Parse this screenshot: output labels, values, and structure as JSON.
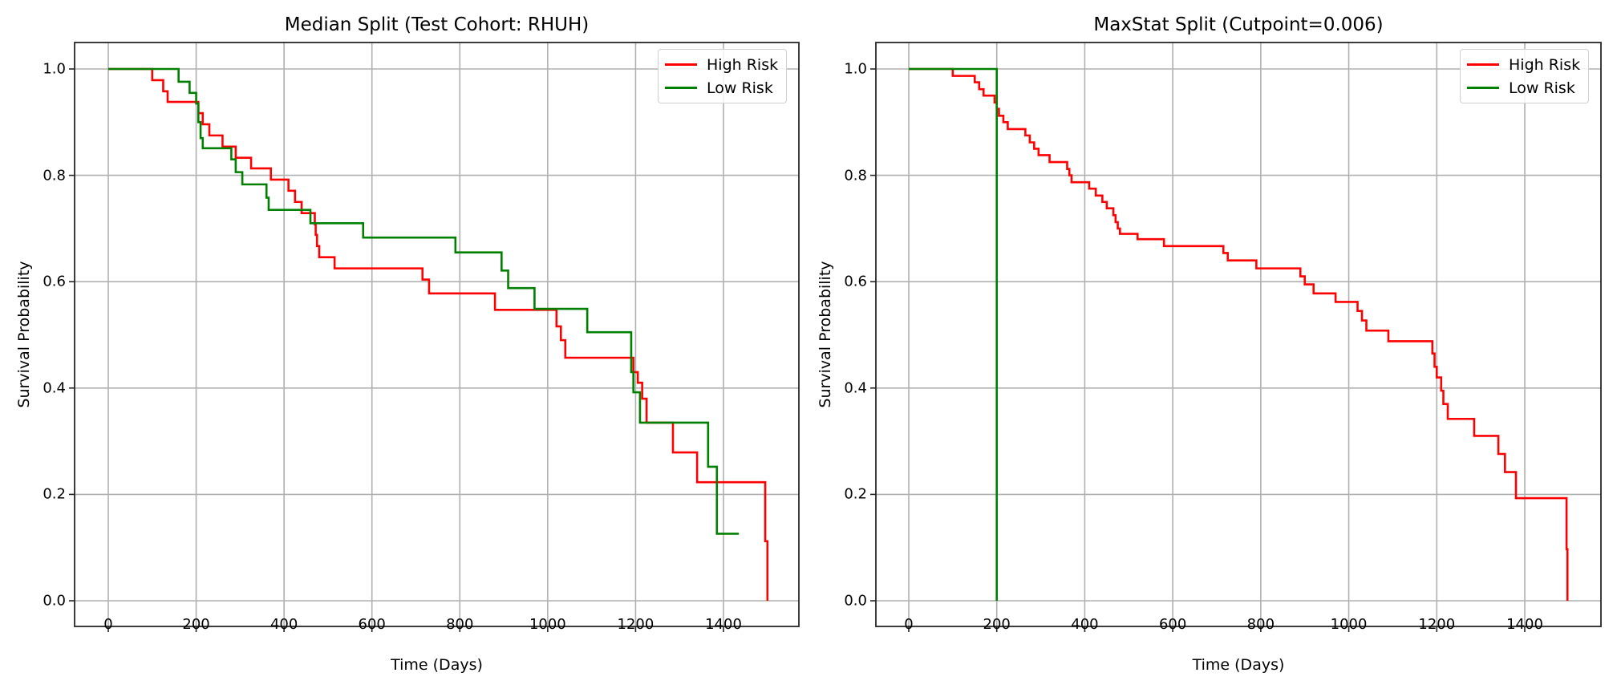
{
  "chart_data": [
    {
      "type": "line",
      "subtype": "kaplan-meier-step",
      "title": "Median Split (Test Cohort: RHUH)",
      "xlabel": "Time (Days)",
      "ylabel": "Survival Probability",
      "xlim": [
        -75,
        1575
      ],
      "ylim": [
        -0.05,
        1.05
      ],
      "xticks": [
        "0",
        "200",
        "400",
        "600",
        "800",
        "1000",
        "1200",
        "1400"
      ],
      "yticks": [
        "0.0",
        "0.2",
        "0.4",
        "0.6",
        "0.8",
        "1.0"
      ],
      "grid": true,
      "legend_position": "upper right",
      "series": [
        {
          "name": "High Risk",
          "color": "#ff0000",
          "points": [
            [
              0,
              1.0
            ],
            [
              100,
              0.979
            ],
            [
              125,
              0.958
            ],
            [
              135,
              0.938
            ],
            [
              205,
              0.917
            ],
            [
              215,
              0.896
            ],
            [
              230,
              0.875
            ],
            [
              260,
              0.854
            ],
            [
              290,
              0.833
            ],
            [
              325,
              0.813
            ],
            [
              370,
              0.792
            ],
            [
              410,
              0.771
            ],
            [
              425,
              0.75
            ],
            [
              440,
              0.729
            ],
            [
              470,
              0.708
            ],
            [
              472,
              0.688
            ],
            [
              475,
              0.667
            ],
            [
              480,
              0.646
            ],
            [
              515,
              0.625
            ],
            [
              715,
              0.604
            ],
            [
              730,
              0.578
            ],
            [
              880,
              0.547
            ],
            [
              1020,
              0.516
            ],
            [
              1030,
              0.49
            ],
            [
              1040,
              0.457
            ],
            [
              1195,
              0.43
            ],
            [
              1205,
              0.41
            ],
            [
              1215,
              0.38
            ],
            [
              1225,
              0.335
            ],
            [
              1285,
              0.279
            ],
            [
              1340,
              0.223
            ],
            [
              1495,
              0.112
            ],
            [
              1500,
              0.0
            ]
          ],
          "end_x": 1500
        },
        {
          "name": "Low Risk",
          "color": "#008000",
          "points": [
            [
              0,
              1.0
            ],
            [
              160,
              0.976
            ],
            [
              185,
              0.955
            ],
            [
              200,
              0.935
            ],
            [
              205,
              0.9
            ],
            [
              210,
              0.87
            ],
            [
              215,
              0.851
            ],
            [
              280,
              0.83
            ],
            [
              290,
              0.806
            ],
            [
              305,
              0.783
            ],
            [
              360,
              0.758
            ],
            [
              365,
              0.735
            ],
            [
              460,
              0.71
            ],
            [
              580,
              0.683
            ],
            [
              790,
              0.655
            ],
            [
              895,
              0.621
            ],
            [
              910,
              0.588
            ],
            [
              970,
              0.549
            ],
            [
              1090,
              0.505
            ],
            [
              1190,
              0.43
            ],
            [
              1195,
              0.392
            ],
            [
              1210,
              0.335
            ],
            [
              1365,
              0.252
            ],
            [
              1385,
              0.126
            ]
          ],
          "end_x": 1435
        }
      ]
    },
    {
      "type": "line",
      "subtype": "kaplan-meier-step",
      "title": "MaxStat Split (Cutpoint=0.006)",
      "xlabel": "Time (Days)",
      "ylabel": "Survival Probability",
      "xlim": [
        -75,
        1575
      ],
      "ylim": [
        -0.05,
        1.05
      ],
      "xticks": [
        "0",
        "200",
        "400",
        "600",
        "800",
        "1000",
        "1200",
        "1400"
      ],
      "yticks": [
        "0.0",
        "0.2",
        "0.4",
        "0.6",
        "0.8",
        "1.0"
      ],
      "grid": true,
      "legend_position": "upper right",
      "series": [
        {
          "name": "High Risk",
          "color": "#ff0000",
          "points": [
            [
              0,
              1.0
            ],
            [
              100,
              0.987
            ],
            [
              150,
              0.975
            ],
            [
              160,
              0.962
            ],
            [
              170,
              0.95
            ],
            [
              195,
              0.937
            ],
            [
              200,
              0.925
            ],
            [
              205,
              0.912
            ],
            [
              215,
              0.9
            ],
            [
              225,
              0.887
            ],
            [
              265,
              0.875
            ],
            [
              275,
              0.862
            ],
            [
              285,
              0.85
            ],
            [
              295,
              0.838
            ],
            [
              320,
              0.825
            ],
            [
              360,
              0.812
            ],
            [
              365,
              0.8
            ],
            [
              370,
              0.787
            ],
            [
              410,
              0.775
            ],
            [
              425,
              0.762
            ],
            [
              440,
              0.75
            ],
            [
              450,
              0.738
            ],
            [
              465,
              0.725
            ],
            [
              470,
              0.712
            ],
            [
              475,
              0.7
            ],
            [
              480,
              0.69
            ],
            [
              520,
              0.68
            ],
            [
              580,
              0.667
            ],
            [
              715,
              0.654
            ],
            [
              725,
              0.64
            ],
            [
              790,
              0.625
            ],
            [
              890,
              0.61
            ],
            [
              900,
              0.595
            ],
            [
              920,
              0.578
            ],
            [
              970,
              0.562
            ],
            [
              1020,
              0.545
            ],
            [
              1030,
              0.527
            ],
            [
              1040,
              0.508
            ],
            [
              1090,
              0.488
            ],
            [
              1190,
              0.465
            ],
            [
              1195,
              0.44
            ],
            [
              1200,
              0.42
            ],
            [
              1210,
              0.395
            ],
            [
              1215,
              0.37
            ],
            [
              1225,
              0.342
            ],
            [
              1285,
              0.31
            ],
            [
              1340,
              0.276
            ],
            [
              1355,
              0.242
            ],
            [
              1380,
              0.193
            ],
            [
              1495,
              0.097
            ],
            [
              1497,
              0.0
            ]
          ],
          "end_x": 1497
        },
        {
          "name": "Low Risk",
          "color": "#008000",
          "points": [
            [
              0,
              1.0
            ],
            [
              200,
              0.0
            ]
          ],
          "end_x": 200
        }
      ]
    }
  ]
}
